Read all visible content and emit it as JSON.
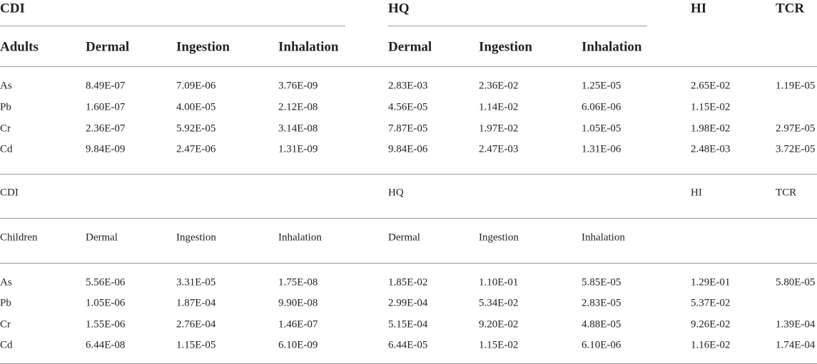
{
  "sections": [
    {
      "group_headers": [
        "CDI",
        "HQ",
        "HI",
        "TCR"
      ],
      "column_headers": [
        "Adults",
        "Dermal",
        "Ingestion",
        "Inhalation",
        "Dermal",
        "Ingestion",
        "Inhalation"
      ],
      "rows": [
        [
          "As",
          "8.49E-07",
          "7.09E-06",
          "3.76E-09",
          "2.83E-03",
          "2.36E-02",
          "1.25E-05",
          "2.65E-02",
          "1.19E-05"
        ],
        [
          "Pb",
          "1.60E-07",
          "4.00E-05",
          "2.12E-08",
          "4.56E-05",
          "1.14E-02",
          "6.06E-06",
          "1.15E-02",
          null
        ],
        [
          "Cr",
          "2.36E-07",
          "5.92E-05",
          "3.14E-08",
          "7.87E-05",
          "1.97E-02",
          "1.05E-05",
          "1.98E-02",
          "2.97E-05"
        ],
        [
          "Cd",
          "9.84E-09",
          "2.47E-06",
          "1.31E-09",
          "9.84E-06",
          "2.47E-03",
          "1.31E-06",
          "2.48E-03",
          "3.72E-05"
        ]
      ]
    },
    {
      "group_headers": [
        "CDI",
        "HQ",
        "HI",
        "TCR"
      ],
      "column_headers": [
        "Children",
        "Dermal",
        "Ingestion",
        "Inhalation",
        "Dermal",
        "Ingestion",
        "Inhalation"
      ],
      "rows": [
        [
          "As",
          "5.56E-06",
          "3.31E-05",
          "1.75E-08",
          "1.85E-02",
          "1.10E-01",
          "5.85E-05",
          "1.29E-01",
          "5.80E-05"
        ],
        [
          "Pb",
          "1.05E-06",
          "1.87E-04",
          "9.90E-08",
          "2.99E-04",
          "5.34E-02",
          "2.83E-05",
          "5.37E-02",
          null
        ],
        [
          "Cr",
          "1.55E-06",
          "2.76E-04",
          "1.46E-07",
          "5.15E-04",
          "9.20E-02",
          "4.88E-05",
          "9.26E-02",
          "1.39E-04"
        ],
        [
          "Cd",
          "6.44E-08",
          "1.15E-05",
          "6.10E-09",
          "6.44E-05",
          "1.15E-02",
          "6.10E-06",
          "1.16E-02",
          "1.74E-04"
        ]
      ]
    }
  ]
}
